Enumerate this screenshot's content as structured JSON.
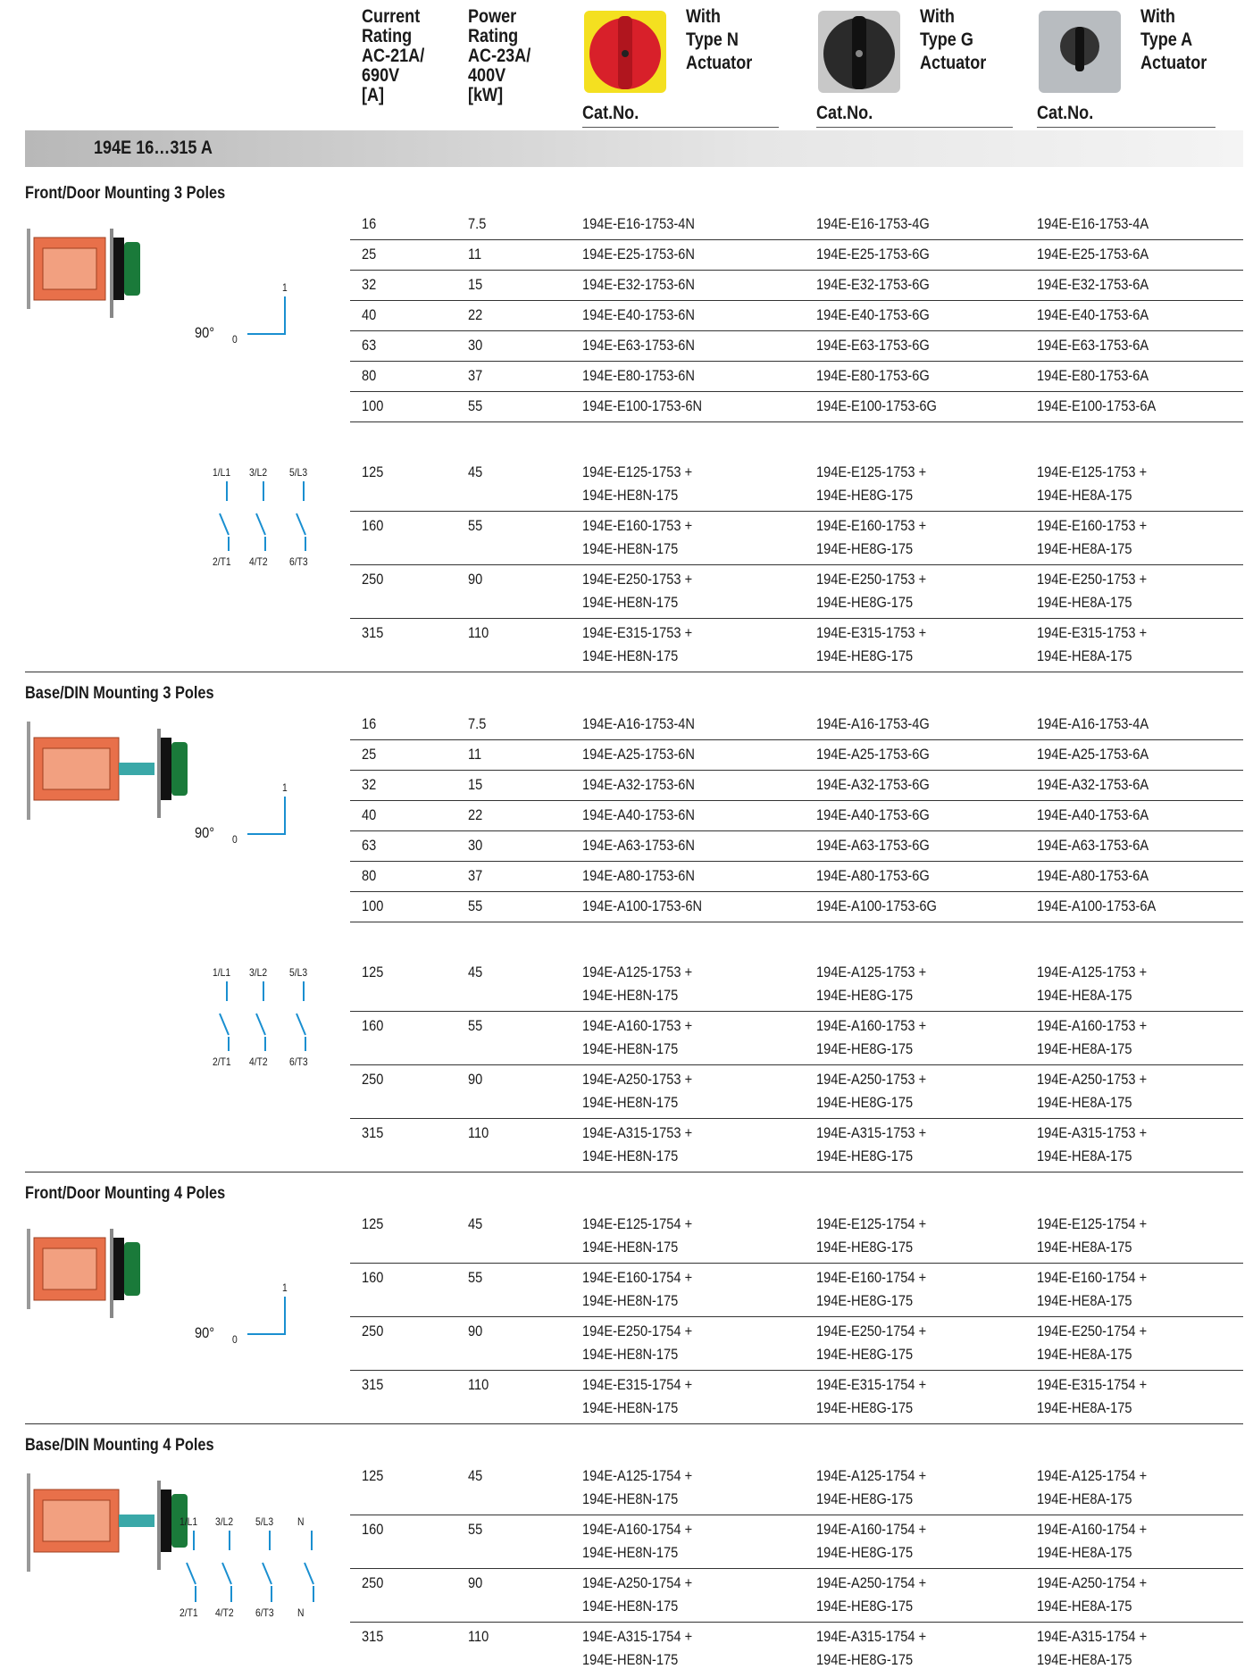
{
  "header": {
    "current": [
      "Current",
      "Rating",
      "AC-21A/",
      "690V",
      "[A]"
    ],
    "power": [
      "Power",
      "Rating",
      "AC-23A/",
      "400V",
      "[kW]"
    ],
    "types": [
      {
        "lines": [
          "With",
          "Type N",
          "Actuator"
        ],
        "cat": "Cat.No."
      },
      {
        "lines": [
          "With",
          "Type G",
          "Actuator"
        ],
        "cat": "Cat.No."
      },
      {
        "lines": [
          "With",
          "Type A",
          "Actuator"
        ],
        "cat": "Cat.No."
      }
    ]
  },
  "band": "194E 16…315 A",
  "sections": [
    {
      "title": "Front/Door Mounting 3 Poles",
      "angle": {
        "deg": "90°",
        "off": "0",
        "on": "1"
      },
      "poles": {
        "top": [
          "1/L1",
          "3/L2",
          "5/L3"
        ],
        "bottom": [
          "2/T1",
          "4/T2",
          "6/T3"
        ]
      },
      "groups": [
        [
          {
            "current": 16,
            "power": 7.5,
            "n": [
              "194E-E16-1753-4N"
            ],
            "g": [
              "194E-E16-1753-4G"
            ],
            "a": [
              "194E-E16-1753-4A"
            ]
          },
          {
            "current": 25,
            "power": 11,
            "n": [
              "194E-E25-1753-6N"
            ],
            "g": [
              "194E-E25-1753-6G"
            ],
            "a": [
              "194E-E25-1753-6A"
            ]
          },
          {
            "current": 32,
            "power": 15,
            "n": [
              "194E-E32-1753-6N"
            ],
            "g": [
              "194E-E32-1753-6G"
            ],
            "a": [
              "194E-E32-1753-6A"
            ]
          },
          {
            "current": 40,
            "power": 22,
            "n": [
              "194E-E40-1753-6N"
            ],
            "g": [
              "194E-E40-1753-6G"
            ],
            "a": [
              "194E-E40-1753-6A"
            ]
          },
          {
            "current": 63,
            "power": 30,
            "n": [
              "194E-E63-1753-6N"
            ],
            "g": [
              "194E-E63-1753-6G"
            ],
            "a": [
              "194E-E63-1753-6A"
            ]
          },
          {
            "current": 80,
            "power": 37,
            "n": [
              "194E-E80-1753-6N"
            ],
            "g": [
              "194E-E80-1753-6G"
            ],
            "a": [
              "194E-E80-1753-6A"
            ]
          },
          {
            "current": 100,
            "power": 55,
            "n": [
              "194E-E100-1753-6N"
            ],
            "g": [
              "194E-E100-1753-6G"
            ],
            "a": [
              "194E-E100-1753-6A"
            ]
          }
        ],
        [
          {
            "current": 125,
            "power": 45,
            "n": [
              "194E-E125-1753 +",
              "194E-HE8N-175"
            ],
            "g": [
              "194E-E125-1753 +",
              "194E-HE8G-175"
            ],
            "a": [
              "194E-E125-1753 +",
              "194E-HE8A-175"
            ]
          },
          {
            "current": 160,
            "power": 55,
            "n": [
              "194E-E160-1753 +",
              "194E-HE8N-175"
            ],
            "g": [
              "194E-E160-1753 +",
              "194E-HE8G-175"
            ],
            "a": [
              "194E-E160-1753 +",
              "194E-HE8A-175"
            ]
          },
          {
            "current": 250,
            "power": 90,
            "n": [
              "194E-E250-1753 +",
              "194E-HE8N-175"
            ],
            "g": [
              "194E-E250-1753 +",
              "194E-HE8G-175"
            ],
            "a": [
              "194E-E250-1753 +",
              "194E-HE8A-175"
            ]
          },
          {
            "current": 315,
            "power": 110,
            "n": [
              "194E-E315-1753 +",
              "194E-HE8N-175"
            ],
            "g": [
              "194E-E315-1753 +",
              "194E-HE8G-175"
            ],
            "a": [
              "194E-E315-1753 +",
              "194E-HE8A-175"
            ]
          }
        ]
      ]
    },
    {
      "title": "Base/DIN Mounting 3 Poles",
      "angle": {
        "deg": "90°",
        "off": "0",
        "on": "1"
      },
      "poles": {
        "top": [
          "1/L1",
          "3/L2",
          "5/L3"
        ],
        "bottom": [
          "2/T1",
          "4/T2",
          "6/T3"
        ]
      },
      "groups": [
        [
          {
            "current": 16,
            "power": 7.5,
            "n": [
              "194E-A16-1753-4N"
            ],
            "g": [
              "194E-A16-1753-4G"
            ],
            "a": [
              "194E-A16-1753-4A"
            ]
          },
          {
            "current": 25,
            "power": 11,
            "n": [
              "194E-A25-1753-6N"
            ],
            "g": [
              "194E-A25-1753-6G"
            ],
            "a": [
              "194E-A25-1753-6A"
            ]
          },
          {
            "current": 32,
            "power": 15,
            "n": [
              "194E-A32-1753-6N"
            ],
            "g": [
              "194E-A32-1753-6G"
            ],
            "a": [
              "194E-A32-1753-6A"
            ]
          },
          {
            "current": 40,
            "power": 22,
            "n": [
              "194E-A40-1753-6N"
            ],
            "g": [
              "194E-A40-1753-6G"
            ],
            "a": [
              "194E-A40-1753-6A"
            ]
          },
          {
            "current": 63,
            "power": 30,
            "n": [
              "194E-A63-1753-6N"
            ],
            "g": [
              "194E-A63-1753-6G"
            ],
            "a": [
              "194E-A63-1753-6A"
            ]
          },
          {
            "current": 80,
            "power": 37,
            "n": [
              "194E-A80-1753-6N"
            ],
            "g": [
              "194E-A80-1753-6G"
            ],
            "a": [
              "194E-A80-1753-6A"
            ]
          },
          {
            "current": 100,
            "power": 55,
            "n": [
              "194E-A100-1753-6N"
            ],
            "g": [
              "194E-A100-1753-6G"
            ],
            "a": [
              "194E-A100-1753-6A"
            ]
          }
        ],
        [
          {
            "current": 125,
            "power": 45,
            "n": [
              "194E-A125-1753 +",
              "194E-HE8N-175"
            ],
            "g": [
              "194E-A125-1753 +",
              "194E-HE8G-175"
            ],
            "a": [
              "194E-A125-1753 +",
              "194E-HE8A-175"
            ]
          },
          {
            "current": 160,
            "power": 55,
            "n": [
              "194E-A160-1753 +",
              "194E-HE8N-175"
            ],
            "g": [
              "194E-A160-1753 +",
              "194E-HE8G-175"
            ],
            "a": [
              "194E-A160-1753 +",
              "194E-HE8A-175"
            ]
          },
          {
            "current": 250,
            "power": 90,
            "n": [
              "194E-A250-1753 +",
              "194E-HE8N-175"
            ],
            "g": [
              "194E-A250-1753 +",
              "194E-HE8G-175"
            ],
            "a": [
              "194E-A250-1753 +",
              "194E-HE8A-175"
            ]
          },
          {
            "current": 315,
            "power": 110,
            "n": [
              "194E-A315-1753 +",
              "194E-HE8N-175"
            ],
            "g": [
              "194E-A315-1753 +",
              "194E-HE8G-175"
            ],
            "a": [
              "194E-A315-1753 +",
              "194E-HE8A-175"
            ]
          }
        ]
      ]
    },
    {
      "title": "Front/Door Mounting 4 Poles",
      "angle": {
        "deg": "90°",
        "off": "0",
        "on": "1"
      },
      "groups": [
        [
          {
            "current": 125,
            "power": 45,
            "n": [
              "194E-E125-1754 +",
              "194E-HE8N-175"
            ],
            "g": [
              "194E-E125-1754 +",
              "194E-HE8G-175"
            ],
            "a": [
              "194E-E125-1754 +",
              "194E-HE8A-175"
            ]
          },
          {
            "current": 160,
            "power": 55,
            "n": [
              "194E-E160-1754 +",
              "194E-HE8N-175"
            ],
            "g": [
              "194E-E160-1754 +",
              "194E-HE8G-175"
            ],
            "a": [
              "194E-E160-1754 +",
              "194E-HE8A-175"
            ]
          },
          {
            "current": 250,
            "power": 90,
            "n": [
              "194E-E250-1754 +",
              "194E-HE8N-175"
            ],
            "g": [
              "194E-E250-1754 +",
              "194E-HE8G-175"
            ],
            "a": [
              "194E-E250-1754 +",
              "194E-HE8A-175"
            ]
          },
          {
            "current": 315,
            "power": 110,
            "n": [
              "194E-E315-1754 +",
              "194E-HE8N-175"
            ],
            "g": [
              "194E-E315-1754 +",
              "194E-HE8G-175"
            ],
            "a": [
              "194E-E315-1754 +",
              "194E-HE8A-175"
            ]
          }
        ]
      ]
    },
    {
      "title": "Base/DIN Mounting 4 Poles",
      "poles": {
        "top": [
          "1/L1",
          "3/L2",
          "5/L3",
          "N"
        ],
        "bottom": [
          "2/T1",
          "4/T2",
          "6/T3",
          "N"
        ]
      },
      "groups": [
        [
          {
            "current": 125,
            "power": 45,
            "n": [
              "194E-A125-1754 +",
              "194E-HE8N-175"
            ],
            "g": [
              "194E-A125-1754 +",
              "194E-HE8G-175"
            ],
            "a": [
              "194E-A125-1754 +",
              "194E-HE8A-175"
            ]
          },
          {
            "current": 160,
            "power": 55,
            "n": [
              "194E-A160-1754 +",
              "194E-HE8N-175"
            ],
            "g": [
              "194E-A160-1754 +",
              "194E-HE8G-175"
            ],
            "a": [
              "194E-A160-1754 +",
              "194E-HE8A-175"
            ]
          },
          {
            "current": 250,
            "power": 90,
            "n": [
              "194E-A250-1754 +",
              "194E-HE8N-175"
            ],
            "g": [
              "194E-A250-1754 +",
              "194E-HE8G-175"
            ],
            "a": [
              "194E-A250-1754 +",
              "194E-HE8A-175"
            ]
          },
          {
            "current": 315,
            "power": 110,
            "n": [
              "194E-A315-1754 +",
              "194E-HE8N-175"
            ],
            "g": [
              "194E-A315-1754 +",
              "194E-HE8G-175"
            ],
            "a": [
              "194E-A315-1754 +",
              "194E-HE8A-175"
            ]
          }
        ]
      ]
    }
  ]
}
